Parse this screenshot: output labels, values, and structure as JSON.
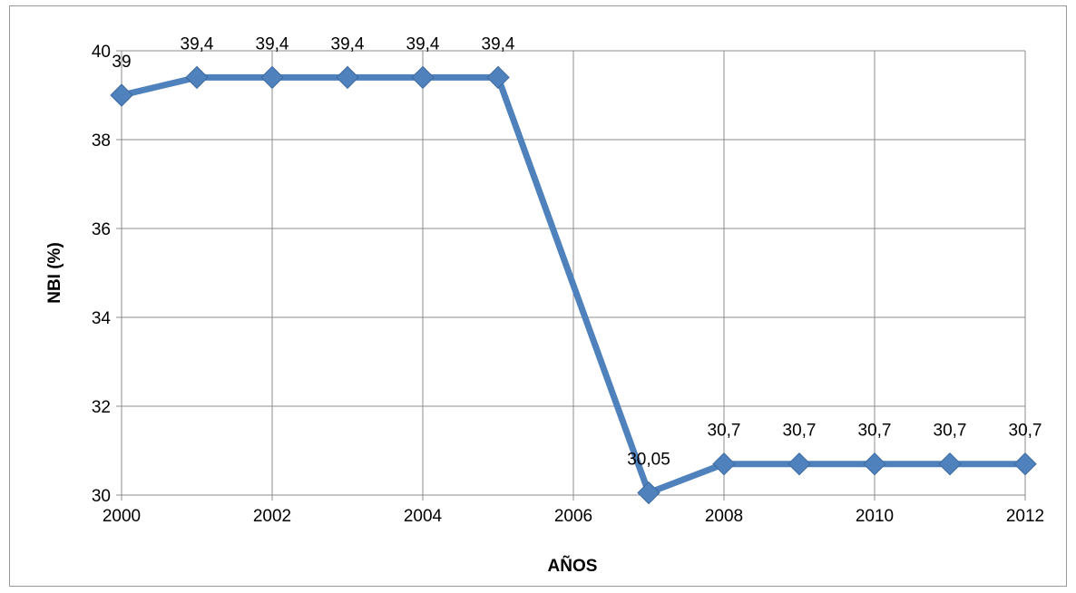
{
  "chart_data": {
    "type": "line",
    "title": "",
    "xlabel": "AÑOS",
    "ylabel": "NBI (%)",
    "x": [
      2000,
      2001,
      2002,
      2003,
      2004,
      2005,
      2007,
      2008,
      2009,
      2010,
      2011,
      2012
    ],
    "series": [
      {
        "values": [
          39,
          39.4,
          39.4,
          39.4,
          39.4,
          39.4,
          30.05,
          30.7,
          30.7,
          30.7,
          30.7,
          30.7
        ],
        "data_labels": [
          "39",
          "39,4",
          "39,4",
          "39,4",
          "39,4",
          "39,4",
          "30,05",
          "30,7",
          "30,7",
          "30,7",
          "30,7",
          "30,7"
        ],
        "color": "#4f81bd",
        "marker": "diamond"
      }
    ],
    "xlim": [
      2000,
      2012
    ],
    "ylim": [
      30,
      40
    ],
    "x_ticks": [
      2000,
      2002,
      2004,
      2006,
      2008,
      2010,
      2012
    ],
    "y_ticks": [
      30,
      32,
      34,
      36,
      38,
      40
    ],
    "x_tick_labels": [
      "2000",
      "2002",
      "2004",
      "2006",
      "2008",
      "2010",
      "2012"
    ],
    "y_tick_labels": [
      "30",
      "32",
      "34",
      "36",
      "38",
      "40"
    ],
    "grid": true,
    "legend": "none"
  }
}
